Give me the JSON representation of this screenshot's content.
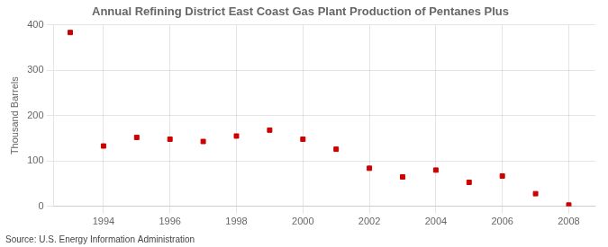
{
  "chart_data": {
    "type": "scatter",
    "title": "Annual Refining District East Coast Gas Plant Production of Pentanes Plus",
    "ylabel": "Thousand Barrels",
    "annotation": "Source: U.S. Energy Information Administration",
    "x": [
      1993,
      1994,
      1995,
      1996,
      1997,
      1998,
      1999,
      2000,
      2001,
      2002,
      2003,
      2004,
      2005,
      2006,
      2007,
      2008
    ],
    "values": [
      383,
      133,
      152,
      148,
      143,
      155,
      168,
      148,
      126,
      84,
      65,
      80,
      53,
      67,
      28,
      3
    ],
    "color": "#cc0000",
    "marker": "square",
    "xlim": [
      1992.5,
      2008.8
    ],
    "xticks": [
      1994,
      1996,
      1998,
      2000,
      2002,
      2004,
      2006,
      2008
    ],
    "ylim": [
      0,
      400
    ],
    "yticks": [
      0,
      100,
      200,
      300,
      400
    ],
    "grid": true
  }
}
